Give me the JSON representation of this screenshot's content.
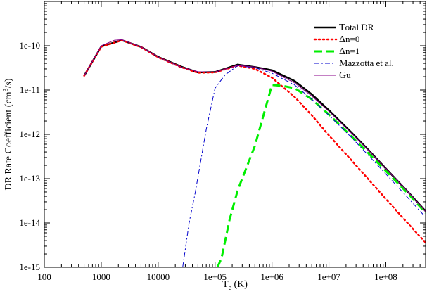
{
  "chart_data": {
    "type": "line",
    "title": "",
    "xlabel_main": "T",
    "xlabel_sub": "e",
    "xlabel_unit": " (K)",
    "ylabel_main": "DR Rate Coefficient (cm",
    "ylabel_sup": "3",
    "ylabel_unit": "/s)",
    "xscale": "log",
    "yscale": "log",
    "xlim": [
      100,
      500000000
    ],
    "ylim": [
      1e-15,
      1e-09
    ],
    "grid": false,
    "legend_position": "top-right",
    "x_ticks": [
      {
        "value": 100,
        "label": "100"
      },
      {
        "value": 1000,
        "label": "1000"
      },
      {
        "value": 10000,
        "label": "10000"
      },
      {
        "value": 100000,
        "label": "1e+05"
      },
      {
        "value": 1000000,
        "label": "1e+06"
      },
      {
        "value": 10000000,
        "label": "1e+07"
      },
      {
        "value": 100000000,
        "label": "1e+08"
      }
    ],
    "y_ticks": [
      {
        "value": 1e-15,
        "label": "1e-15"
      },
      {
        "value": 1e-14,
        "label": "1e-14"
      },
      {
        "value": 1e-13,
        "label": "1e-13"
      },
      {
        "value": 1e-12,
        "label": "1e-12"
      },
      {
        "value": 1e-11,
        "label": "1e-11"
      },
      {
        "value": 1e-10,
        "label": "1e-10"
      }
    ],
    "series": [
      {
        "name": "Total DR",
        "label_first": "T",
        "label_rest": "otal DR",
        "color": "#000000",
        "style": "solid",
        "width": 2.5,
        "points": [
          [
            500,
            2.1e-11
          ],
          [
            1000,
            9.6e-11
          ],
          [
            2300,
            1.33e-10
          ],
          [
            5000,
            9.4e-11
          ],
          [
            10000,
            5.6e-11
          ],
          [
            25000,
            3.4e-11
          ],
          [
            50000,
            2.5e-11
          ],
          [
            100000,
            2.55e-11
          ],
          [
            250000,
            3.75e-11
          ],
          [
            500000,
            3.3e-11
          ],
          [
            1000000,
            2.8e-11
          ],
          [
            2500000,
            1.6e-11
          ],
          [
            5000000,
            8e-12
          ],
          [
            10000000,
            3.5e-12
          ],
          [
            25000000,
            1.1e-12
          ],
          [
            50000000,
            4.4e-13
          ],
          [
            100000000,
            1.7e-13
          ],
          [
            250000000,
            4.9e-14
          ],
          [
            500000000,
            1.85e-14
          ]
        ]
      },
      {
        "name": "Δn=0",
        "label_first": "Δ",
        "label_rest": "n=0",
        "color": "#ff0000",
        "style": "dotted",
        "width": 2.5,
        "points": [
          [
            500,
            2.1e-11
          ],
          [
            1000,
            9.5e-11
          ],
          [
            2300,
            1.32e-10
          ],
          [
            5000,
            9.3e-11
          ],
          [
            10000,
            5.5e-11
          ],
          [
            25000,
            3.3e-11
          ],
          [
            50000,
            2.45e-11
          ],
          [
            100000,
            2.5e-11
          ],
          [
            250000,
            3.55e-11
          ],
          [
            500000,
            3e-11
          ],
          [
            1000000,
            1.9e-11
          ],
          [
            2500000,
            7e-12
          ],
          [
            5000000,
            2.7e-12
          ],
          [
            10000000,
            9.5e-13
          ],
          [
            25000000,
            2.6e-13
          ],
          [
            50000000,
            9.5e-14
          ],
          [
            100000000,
            3.5e-14
          ],
          [
            250000000,
            9.5e-15
          ],
          [
            500000000,
            3.6e-15
          ]
        ]
      },
      {
        "name": "Δn=1",
        "label_first": "Δ",
        "label_rest": "n=1",
        "color": "#00ee00",
        "style": "dashed",
        "width": 3,
        "points": [
          [
            110000,
            1e-15
          ],
          [
            130000,
            1.6e-15
          ],
          [
            180000,
            1.2e-14
          ],
          [
            250000,
            5.5e-14
          ],
          [
            500000,
            5.5e-13
          ],
          [
            1000000,
            1.3e-11
          ],
          [
            1500000,
            1.25e-11
          ],
          [
            2500000,
            1.1e-11
          ],
          [
            5000000,
            6.2e-12
          ],
          [
            10000000,
            2.8e-12
          ],
          [
            25000000,
            9e-13
          ],
          [
            50000000,
            3.7e-13
          ],
          [
            100000000,
            1.5e-13
          ],
          [
            250000000,
            4.5e-14
          ],
          [
            500000000,
            1.7e-14
          ]
        ]
      },
      {
        "name": "Mazzotta et al.",
        "label_first": "M",
        "label_rest": "azzotta et al.",
        "color": "#0000cc",
        "style": "dashdot",
        "width": 1,
        "points": [
          [
            27000,
            1e-15
          ],
          [
            35000,
            1e-14
          ],
          [
            45000,
            5e-14
          ],
          [
            70000,
            1.3e-12
          ],
          [
            100000,
            1.1e-11
          ],
          [
            150000,
            2.2e-11
          ],
          [
            250000,
            3.55e-11
          ],
          [
            500000,
            3.2e-11
          ],
          [
            1000000,
            2.4e-11
          ],
          [
            2500000,
            1.3e-11
          ],
          [
            5000000,
            6.2e-12
          ],
          [
            10000000,
            2.7e-12
          ],
          [
            25000000,
            8.5e-13
          ],
          [
            50000000,
            3.3e-13
          ],
          [
            100000000,
            1.28e-13
          ],
          [
            250000000,
            3.6e-14
          ],
          [
            500000000,
            1.35e-14
          ]
        ]
      },
      {
        "name": "Gu",
        "label_first": "G",
        "label_rest": "u",
        "color": "#880088",
        "style": "solid",
        "width": 1,
        "points": [
          [
            500,
            2.1e-11
          ],
          [
            1000,
            1e-10
          ],
          [
            1700,
            1.33e-10
          ],
          [
            2300,
            1.37e-10
          ],
          [
            5000,
            9.4e-11
          ],
          [
            10000,
            5.6e-11
          ],
          [
            25000,
            3.3e-11
          ],
          [
            50000,
            2.6e-11
          ],
          [
            100000,
            2.55e-11
          ],
          [
            250000,
            3.6e-11
          ],
          [
            500000,
            3.3e-11
          ],
          [
            1000000,
            2.65e-11
          ],
          [
            2500000,
            1.45e-11
          ],
          [
            5000000,
            7.3e-12
          ],
          [
            10000000,
            3.3e-12
          ],
          [
            25000000,
            1.05e-12
          ],
          [
            50000000,
            4.3e-13
          ],
          [
            100000000,
            1.7e-13
          ],
          [
            250000000,
            4.9e-14
          ],
          [
            500000000,
            1.8e-14
          ]
        ]
      }
    ]
  }
}
